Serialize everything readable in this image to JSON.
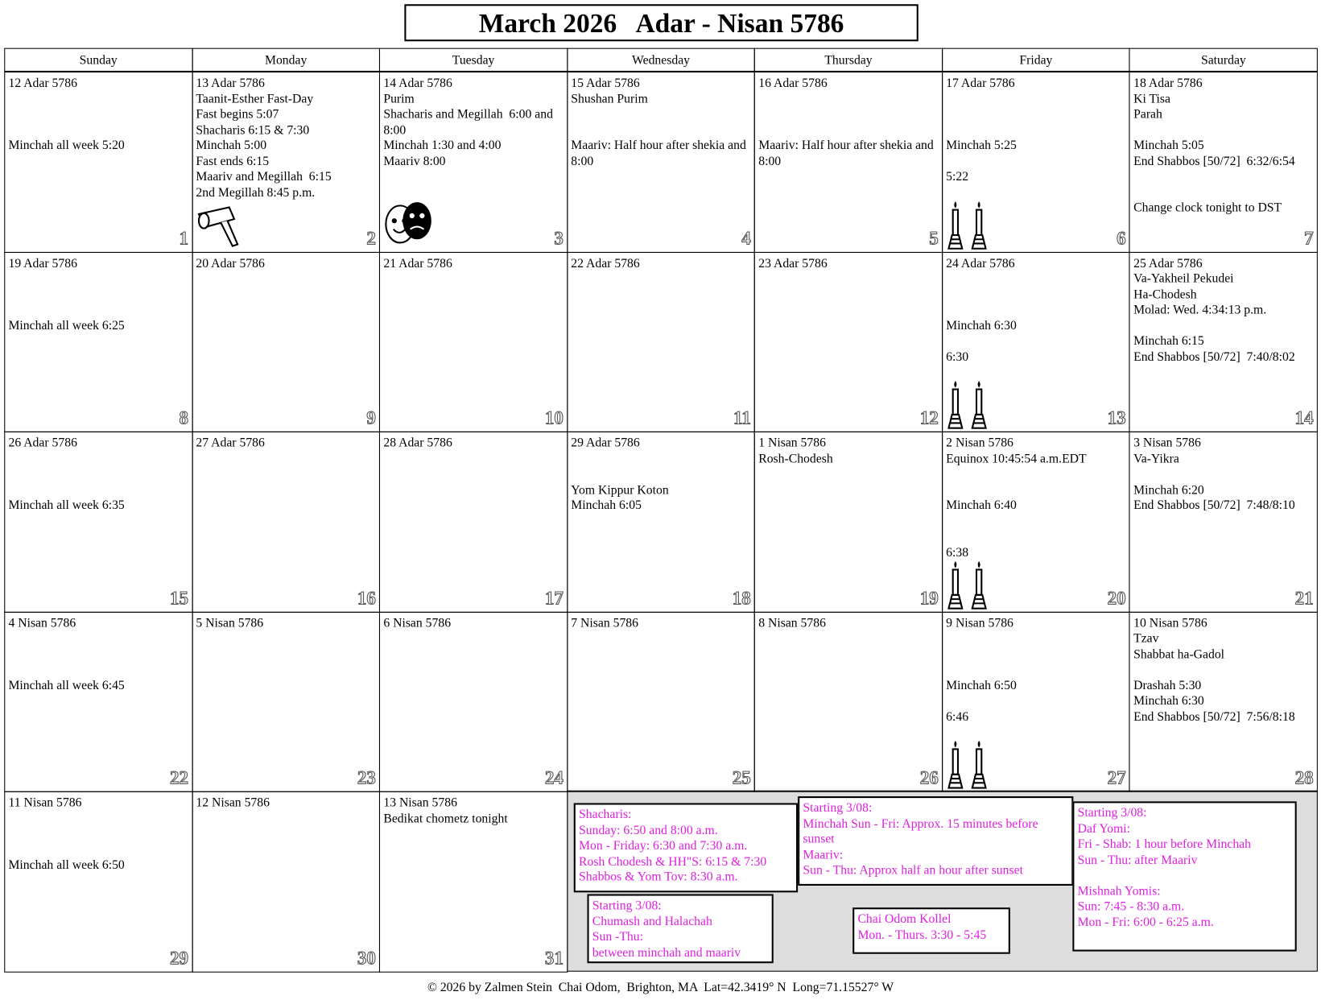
{
  "header": {
    "title": "March 2026   Adar - Nisan 5786"
  },
  "weekdays": [
    "Sunday",
    "Monday",
    "Tuesday",
    "Wednesday",
    "Thursday",
    "Friday",
    "Saturday"
  ],
  "weeks": [
    [
      {
        "hebrew_date": "12 Adar 5786",
        "lines": [
          "Minchah all week 5:20"
        ],
        "day": 1
      },
      {
        "hebrew_date": "13 Adar 5786",
        "lines": [
          "Taanit-Esther Fast-Day",
          "Fast begins 5:07",
          "Shacharis 6:15 & 7:30",
          "Minchah 5:00",
          "Fast ends 6:15",
          "Maariv and Megillah  6:15",
          "2nd Megillah 8:45 p.m."
        ],
        "day": 2
      },
      {
        "hebrew_date": "14 Adar 5786",
        "lines": [
          "Purim",
          "Shacharis and Megillah  6:00 and 8:00",
          "Minchah 1:30 and 4:00",
          "Maariv 8:00"
        ],
        "day": 3
      },
      {
        "hebrew_date": "15 Adar 5786",
        "lines": [
          "Shushan Purim",
          "Maariv: Half hour after shekia and 8:00"
        ],
        "day": 4
      },
      {
        "hebrew_date": "16 Adar 5786",
        "lines": [
          "Maariv: Half hour after shekia and 8:00"
        ],
        "day": 5
      },
      {
        "hebrew_date": "17 Adar 5786",
        "lines": [
          "Minchah 5:25",
          "5:22"
        ],
        "day": 6
      },
      {
        "hebrew_date": "18 Adar 5786",
        "lines": [
          "Ki Tisa",
          "Parah",
          "Minchah 5:05",
          "End Shabbos [50/72]  6:32/6:54",
          "Change clock tonight to DST"
        ],
        "day": 7
      }
    ],
    [
      {
        "hebrew_date": "19 Adar 5786",
        "lines": [
          "Minchah all week 6:25"
        ],
        "day": 8
      },
      {
        "hebrew_date": "20 Adar 5786",
        "lines": [],
        "day": 9
      },
      {
        "hebrew_date": "21 Adar 5786",
        "lines": [],
        "day": 10
      },
      {
        "hebrew_date": "22 Adar 5786",
        "lines": [],
        "day": 11
      },
      {
        "hebrew_date": "23 Adar 5786",
        "lines": [],
        "day": 12
      },
      {
        "hebrew_date": "24 Adar 5786",
        "lines": [
          "Minchah 6:30",
          "6:30"
        ],
        "day": 13
      },
      {
        "hebrew_date": "25 Adar 5786",
        "lines": [
          "Va-Yakheil Pekudei",
          "Ha-Chodesh",
          "Molad: Wed. 4:34:13 p.m.",
          "Minchah 6:15",
          "End Shabbos [50/72]  7:40/8:02"
        ],
        "day": 14
      }
    ],
    [
      {
        "hebrew_date": "26 Adar 5786",
        "lines": [
          "Minchah all week 6:35"
        ],
        "day": 15
      },
      {
        "hebrew_date": "27 Adar 5786",
        "lines": [],
        "day": 16
      },
      {
        "hebrew_date": "28 Adar 5786",
        "lines": [],
        "day": 17
      },
      {
        "hebrew_date": "29 Adar 5786",
        "lines": [
          "Yom Kippur Koton",
          "Minchah 6:05"
        ],
        "day": 18
      },
      {
        "hebrew_date": "1 Nisan 5786",
        "lines": [
          "Rosh-Chodesh"
        ],
        "day": 19
      },
      {
        "hebrew_date": "2 Nisan 5786",
        "lines": [
          "Equinox 10:45:54 a.m.EDT",
          "Minchah 6:40",
          "6:38"
        ],
        "day": 20
      },
      {
        "hebrew_date": "3 Nisan 5786",
        "lines": [
          "Va-Yikra",
          "Minchah 6:20",
          "End Shabbos [50/72]  7:48/8:10"
        ],
        "day": 21
      }
    ],
    [
      {
        "hebrew_date": "4 Nisan 5786",
        "lines": [
          "Minchah all week 6:45"
        ],
        "day": 22
      },
      {
        "hebrew_date": "5 Nisan 5786",
        "lines": [],
        "day": 23
      },
      {
        "hebrew_date": "6 Nisan 5786",
        "lines": [],
        "day": 24
      },
      {
        "hebrew_date": "7 Nisan 5786",
        "lines": [],
        "day": 25
      },
      {
        "hebrew_date": "8 Nisan 5786",
        "lines": [],
        "day": 26
      },
      {
        "hebrew_date": "9 Nisan 5786",
        "lines": [
          "Minchah 6:50",
          "6:46"
        ],
        "day": 27
      },
      {
        "hebrew_date": "10 Nisan 5786",
        "lines": [
          "Tzav",
          "Shabbat ha-Gadol",
          "Drashah 5:30",
          "Minchah 6:30",
          "End Shabbos [50/72]  7:56/8:18"
        ],
        "day": 28
      }
    ],
    [
      {
        "hebrew_date": "11 Nisan 5786",
        "lines": [
          "Minchah all week 6:50"
        ],
        "day": 29
      },
      {
        "hebrew_date": "12 Nisan 5786",
        "lines": [],
        "day": 30
      },
      {
        "hebrew_date": "13 Nisan 5786",
        "lines": [
          "Bedikat chometz tonight"
        ],
        "day": 31
      }
    ]
  ],
  "notes": [
    {
      "lines": [
        "Shacharis:",
        "Sunday: 6:50 and 8:00 a.m.",
        "Mon - Friday: 6:30 and 7:30 a.m.",
        "Rosh Chodesh & HH\"S: 6:15 & 7:30",
        "Shabbos & Yom Tov: 8:30 a.m."
      ]
    },
    {
      "lines": [
        "Starting 3/08:",
        "Minchah Sun - Fri: Approx. 15 minutes before sunset",
        "Maariv:",
        "Sun - Thu: Approx half an hour after sunset"
      ]
    },
    {
      "lines": [
        "Starting 3/08:",
        "Chumash and Halachah",
        "Sun -Thu:",
        "between minchah and maariv"
      ]
    },
    {
      "lines": [
        "Chai Odom Kollel",
        "Mon. - Thurs. 3:30 - 5:45"
      ]
    },
    {
      "lines": [
        "Starting 3/08:",
        "Daf Yomi:",
        "Fri - Shab: 1 hour before Minchah",
        "Sun - Thu: after Maariv",
        "Mishnah Yomis:",
        "Sun: 7:45 - 8:30 a.m.",
        "Mon - Fri: 6:00 - 6:25 a.m."
      ]
    }
  ],
  "footer": "© 2026 by Zalmen Stein  Chai Odom,  Brighton, MA  Lat=42.3419° N  Long=71.15527° W"
}
